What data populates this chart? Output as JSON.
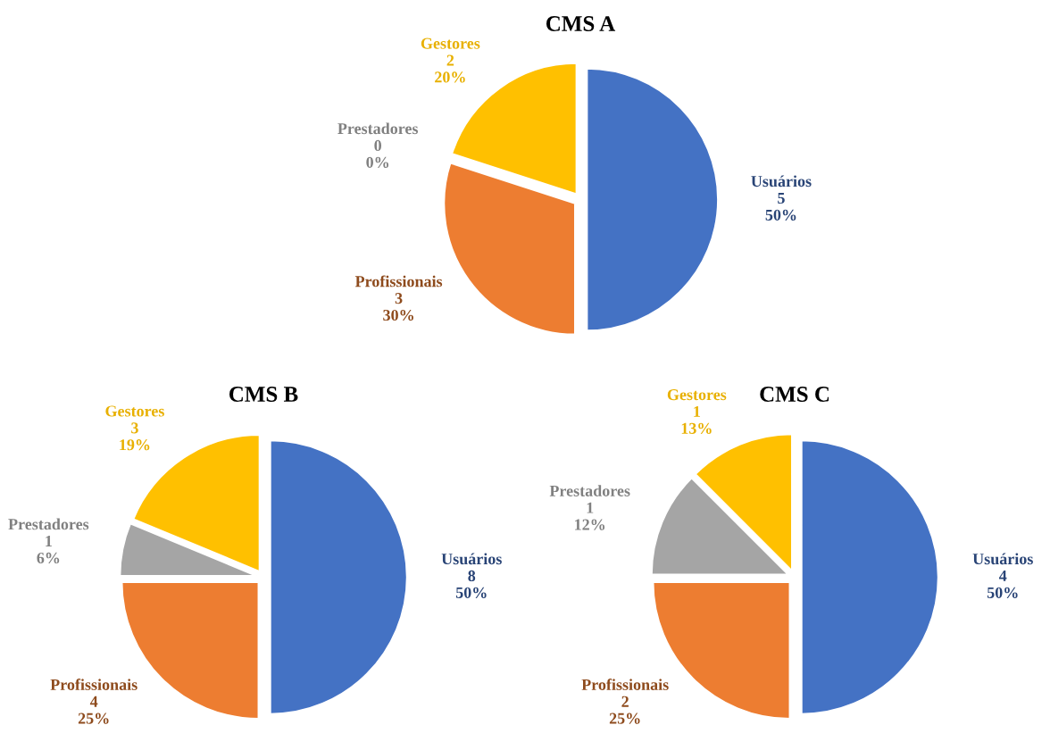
{
  "chart_data": [
    {
      "type": "pie",
      "title": "CMS A",
      "categories": [
        "Usuários",
        "Profissionais",
        "Prestadores",
        "Gestores"
      ],
      "values": [
        5,
        3,
        0,
        2
      ],
      "colors": [
        "#4472c4",
        "#ed7d31",
        "#a5a5a5",
        "#ffc000"
      ],
      "value_labels": [
        "5\n50%",
        "3\n30%",
        "0\n0%",
        "2\n20%"
      ]
    },
    {
      "type": "pie",
      "title": "CMS B",
      "categories": [
        "Usuários",
        "Profissionais",
        "Prestadores",
        "Gestores"
      ],
      "values": [
        8,
        4,
        1,
        3
      ],
      "colors": [
        "#4472c4",
        "#ed7d31",
        "#a5a5a5",
        "#ffc000"
      ],
      "value_labels": [
        "8\n50%",
        "4\n25%",
        "1\n6%",
        "3\n19%"
      ]
    },
    {
      "type": "pie",
      "title": "CMS C",
      "categories": [
        "Usuários",
        "Profissionais",
        "Prestadores",
        "Gestores"
      ],
      "values": [
        4,
        2,
        1,
        1
      ],
      "colors": [
        "#4472c4",
        "#ed7d31",
        "#a5a5a5",
        "#ffc000"
      ],
      "value_labels": [
        "4\n50%",
        "2\n25%",
        "1\n12%",
        "1\n13%"
      ]
    }
  ]
}
